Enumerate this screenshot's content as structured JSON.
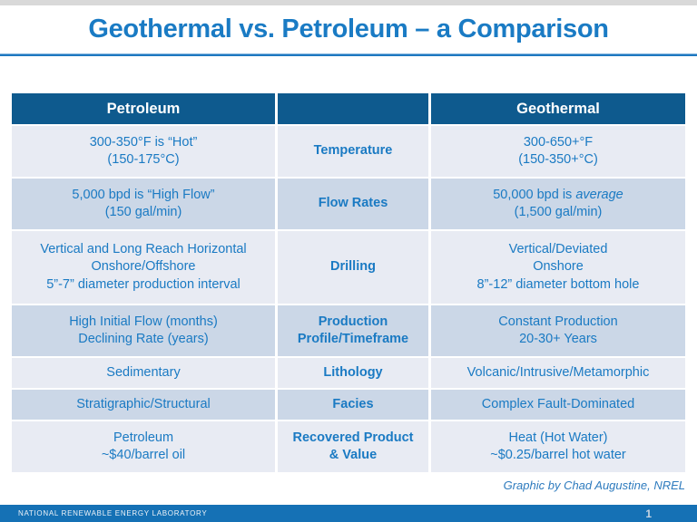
{
  "colors": {
    "title-blue": "#1a7bc4",
    "rule-blue": "#1e78c0",
    "header-bg": "#0e5a8e",
    "row-light": "#e8ebf3",
    "row-dark": "#cbd7e7",
    "text-blue": "#1a7ac3",
    "footer-bg": "#1571b5"
  },
  "slide": {
    "title": "Geothermal vs. Petroleum – a Comparison",
    "attribution": "Graphic by Chad Augustine, NREL"
  },
  "footer": {
    "organization": "NATIONAL RENEWABLE ENERGY LABORATORY",
    "page_number": "1"
  },
  "table": {
    "headers": {
      "left": "Petroleum",
      "middle": "",
      "right": "Geothermal"
    },
    "rows": [
      {
        "category": [
          "Temperature"
        ],
        "petroleum": [
          "300-350°F is “Hot”",
          "(150-175°C)"
        ],
        "geothermal": [
          "300-650+°F",
          "(150-350+°C)"
        ]
      },
      {
        "category": [
          "Flow Rates"
        ],
        "petroleum": [
          "5,000 bpd is “High Flow”",
          "(150 gal/min)"
        ],
        "geothermal": [
          [
            {
              "t": "50,000 bpd is "
            },
            {
              "t": "average",
              "i": true
            }
          ],
          "(1,500 gal/min)"
        ]
      },
      {
        "category": [
          "Drilling"
        ],
        "petroleum": [
          "Vertical and Long Reach Horizontal",
          "Onshore/Offshore",
          "5”-7” diameter production interval"
        ],
        "geothermal": [
          "Vertical/Deviated",
          "Onshore",
          "8”-12” diameter bottom hole"
        ]
      },
      {
        "category": [
          "Production",
          "Profile/Timeframe"
        ],
        "petroleum": [
          "High Initial Flow (months)",
          "Declining Rate (years)"
        ],
        "geothermal": [
          "Constant Production",
          "20-30+ Years"
        ]
      },
      {
        "category": [
          "Lithology"
        ],
        "petroleum": [
          "Sedimentary"
        ],
        "geothermal": [
          "Volcanic/Intrusive/Metamorphic"
        ]
      },
      {
        "category": [
          "Facies"
        ],
        "petroleum": [
          "Stratigraphic/Structural"
        ],
        "geothermal": [
          "Complex Fault-Dominated"
        ]
      },
      {
        "category": [
          "Recovered Product",
          "& Value"
        ],
        "petroleum": [
          "Petroleum",
          "~$40/barrel oil"
        ],
        "geothermal": [
          "Heat (Hot Water)",
          "~$0.25/barrel hot water"
        ]
      }
    ]
  }
}
